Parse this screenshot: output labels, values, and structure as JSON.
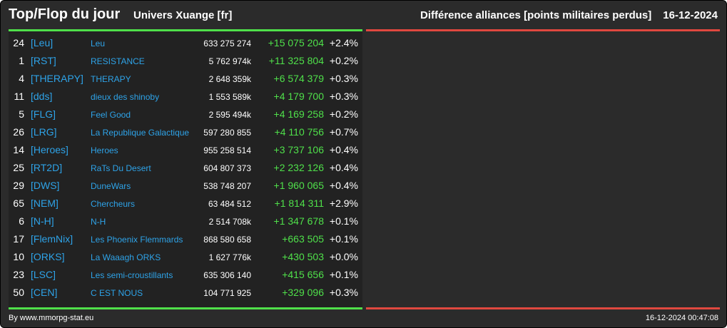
{
  "header": {
    "title": "Top/Flop du jour",
    "universe": "Univers Xuange [fr]",
    "category": "Différence alliances [points militaires perdus]",
    "date": "16-12-2024"
  },
  "rows": [
    {
      "rank": "24",
      "tag": "[Leu]",
      "name": "Leu",
      "points": "633 275 274",
      "diff": "+15 075 204",
      "pct": "+2.4%"
    },
    {
      "rank": "1",
      "tag": "[RST]",
      "name": "RESISTANCE",
      "points": "5 762 974k",
      "diff": "+11 325 804",
      "pct": "+0.2%"
    },
    {
      "rank": "4",
      "tag": "[THERAPY]",
      "name": "THERAPY",
      "points": "2 648 359k",
      "diff": "+6 574 379",
      "pct": "+0.3%"
    },
    {
      "rank": "11",
      "tag": "[dds]",
      "name": "dieux des shinoby",
      "points": "1 553 589k",
      "diff": "+4 179 700",
      "pct": "+0.3%"
    },
    {
      "rank": "5",
      "tag": "[FLG]",
      "name": "Feel Good",
      "points": "2 595 494k",
      "diff": "+4 169 258",
      "pct": "+0.2%"
    },
    {
      "rank": "26",
      "tag": "[LRG]",
      "name": "La Republique Galactique",
      "points": "597 280 855",
      "diff": "+4 110 756",
      "pct": "+0.7%"
    },
    {
      "rank": "14",
      "tag": "[Heroes]",
      "name": "Heroes",
      "points": "955 258 514",
      "diff": "+3 737 106",
      "pct": "+0.4%"
    },
    {
      "rank": "25",
      "tag": "[RT2D]",
      "name": "RaTs Du Desert",
      "points": "604 807 373",
      "diff": "+2 232 126",
      "pct": "+0.4%"
    },
    {
      "rank": "29",
      "tag": "[DWS]",
      "name": "DuneWars",
      "points": "538 748 207",
      "diff": "+1 960 065",
      "pct": "+0.4%"
    },
    {
      "rank": "65",
      "tag": "[NEM]",
      "name": "Chercheurs",
      "points": "63 484 512",
      "diff": "+1 814 311",
      "pct": "+2.9%"
    },
    {
      "rank": "6",
      "tag": "[N-H]",
      "name": "N-H",
      "points": "2 514 708k",
      "diff": "+1 347 678",
      "pct": "+0.1%"
    },
    {
      "rank": "17",
      "tag": "[FlemNix]",
      "name": "Les Phoenix Flemmards",
      "points": "868 580 658",
      "diff": "+663 505",
      "pct": "+0.1%"
    },
    {
      "rank": "10",
      "tag": "[ORKS]",
      "name": "La Waaagh ORKS",
      "points": "1 627 776k",
      "diff": "+430 503",
      "pct": "+0.0%"
    },
    {
      "rank": "23",
      "tag": "[LSC]",
      "name": "Les semi-croustillants",
      "points": "635 306 140",
      "diff": "+415 656",
      "pct": "+0.1%"
    },
    {
      "rank": "50",
      "tag": "[CEN]",
      "name": "C EST NOUS",
      "points": "104 771 925",
      "diff": "+329 096",
      "pct": "+0.3%"
    }
  ],
  "footer": {
    "credit": "By www.mmorpg-stat.eu",
    "timestamp": "16-12-2024 00:47:08"
  },
  "colors": {
    "background": "#2b2b2b",
    "panel": "#222222",
    "link": "#2ea3e8",
    "positive": "#4fe04a",
    "negative": "#e0483f",
    "text": "#ffffff"
  }
}
